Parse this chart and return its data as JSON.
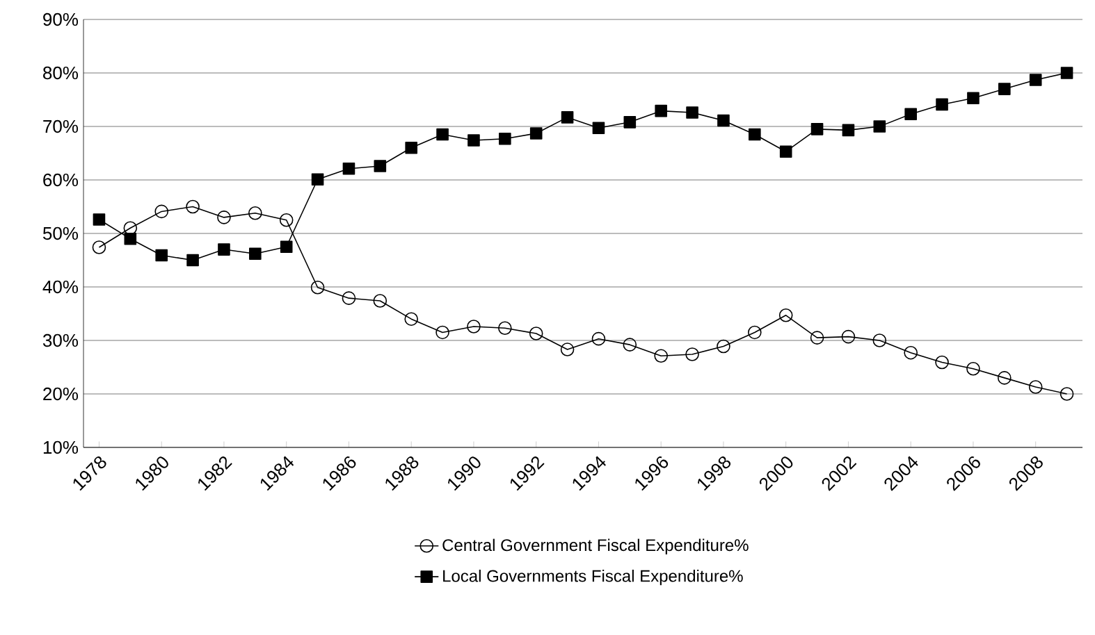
{
  "chart_data": {
    "type": "line",
    "categories": [
      "1978",
      null,
      "1980",
      null,
      "1982",
      null,
      "1984",
      null,
      "1986",
      null,
      "1988",
      null,
      "1990",
      null,
      "1992",
      null,
      "1994",
      null,
      "1996",
      null,
      "1998",
      null,
      "2000",
      null,
      "2002",
      null,
      "2004",
      null,
      "2006",
      null,
      "2008",
      null
    ],
    "series": [
      {
        "name": "Central Government Fiscal Expenditure%",
        "color": "#000000",
        "marker": "circle",
        "values": [
          47.4,
          51.0,
          54.1,
          55.0,
          53.0,
          53.8,
          52.5,
          39.9,
          37.9,
          37.4,
          34.0,
          31.5,
          32.6,
          32.3,
          31.3,
          28.3,
          30.3,
          29.2,
          27.1,
          27.4,
          28.9,
          31.5,
          34.7,
          30.5,
          30.7,
          30.0,
          27.7,
          25.9,
          24.7,
          23.0,
          21.3,
          20.0
        ]
      },
      {
        "name": "Local Governments Fiscal Expenditure%",
        "color": "#000000",
        "marker": "square",
        "values": [
          52.6,
          49.0,
          45.9,
          45.0,
          47.0,
          46.2,
          47.5,
          60.1,
          62.1,
          62.6,
          66.0,
          68.5,
          67.4,
          67.7,
          68.7,
          71.7,
          69.7,
          70.8,
          72.9,
          72.6,
          71.1,
          68.5,
          65.3,
          69.5,
          69.3,
          70.0,
          72.3,
          74.1,
          75.3,
          77.0,
          78.7,
          80.0
        ]
      }
    ],
    "ylim": [
      10,
      90
    ],
    "yticks": [
      {
        "value": 10,
        "label": "10%"
      },
      {
        "value": 20,
        "label": "20%"
      },
      {
        "value": 30,
        "label": "30%"
      },
      {
        "value": 40,
        "label": "40%"
      },
      {
        "value": 50,
        "label": "50%"
      },
      {
        "value": 60,
        "label": "60%"
      },
      {
        "value": 70,
        "label": "70%"
      },
      {
        "value": 80,
        "label": "80%"
      },
      {
        "value": 90,
        "label": "90%"
      }
    ],
    "grid": "y",
    "legend": "bottom",
    "line_style": "solid"
  }
}
